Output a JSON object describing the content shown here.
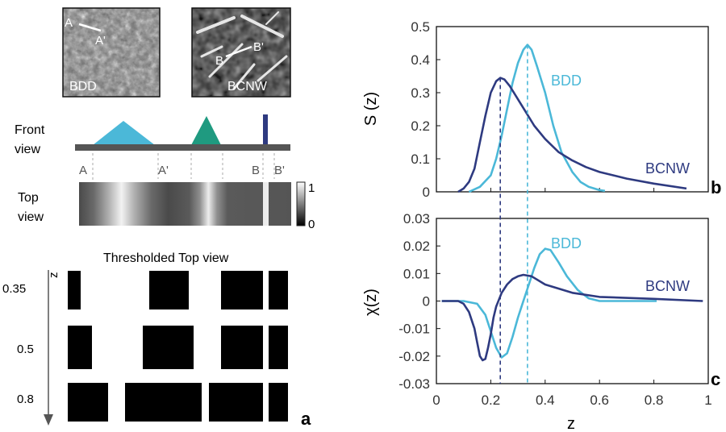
{
  "panel_labels": {
    "a": "a",
    "b": "b",
    "c": "c"
  },
  "panel_a": {
    "micrograph_labels": {
      "bdd": {
        "name": "BDD",
        "point_start": "A",
        "point_end": "A'"
      },
      "bcnw": {
        "name": "BCNW",
        "point_start": "B",
        "point_end": "B'"
      }
    },
    "row_labels": {
      "front_line1": "Front",
      "front_line2": "view",
      "top_line1": "Top",
      "top_line2": "view"
    },
    "front_view_colors": {
      "bdd": "#4bb8d8",
      "middle": "#1f9a80",
      "bcnw": "#2e3a80",
      "base": "#555555"
    },
    "section_labels": [
      "A",
      "A'",
      "B",
      "B'"
    ],
    "colorbar": {
      "max_label": "1",
      "min_label": "0"
    },
    "thresholded": {
      "title": "Thresholded Top view",
      "axis_label": "z",
      "levels": [
        "0.35",
        "0.5",
        "0.8"
      ]
    }
  },
  "colors": {
    "bdd": "#4bb8d8",
    "bcnw": "#2e3a80"
  },
  "chart_data": [
    {
      "type": "line",
      "panel": "b",
      "ylabel": "S (z)",
      "xlabel": "",
      "xlim": [
        0,
        1
      ],
      "ylim": [
        0,
        0.5
      ],
      "yticks": [
        "0",
        "0.1",
        "0.2",
        "0.3",
        "0.4",
        "0.5"
      ],
      "series": [
        {
          "name": "BDD",
          "x": [
            0.12,
            0.16,
            0.2,
            0.22,
            0.24,
            0.26,
            0.28,
            0.3,
            0.32,
            0.335,
            0.35,
            0.37,
            0.4,
            0.43,
            0.46,
            0.5,
            0.53,
            0.56,
            0.6,
            0.62
          ],
          "y": [
            0,
            0.015,
            0.05,
            0.1,
            0.17,
            0.25,
            0.33,
            0.39,
            0.43,
            0.445,
            0.43,
            0.38,
            0.3,
            0.2,
            0.12,
            0.06,
            0.03,
            0.015,
            0.005,
            0.003
          ]
        },
        {
          "name": "BCNW",
          "x": [
            0.08,
            0.1,
            0.12,
            0.14,
            0.16,
            0.18,
            0.2,
            0.22,
            0.235,
            0.25,
            0.27,
            0.3,
            0.33,
            0.36,
            0.4,
            0.45,
            0.5,
            0.55,
            0.6,
            0.7,
            0.8,
            0.92
          ],
          "y": [
            0,
            0.01,
            0.03,
            0.07,
            0.15,
            0.23,
            0.3,
            0.335,
            0.345,
            0.34,
            0.32,
            0.28,
            0.24,
            0.2,
            0.16,
            0.12,
            0.095,
            0.075,
            0.06,
            0.04,
            0.025,
            0.01
          ]
        }
      ],
      "markers": [
        {
          "series": "BCNW",
          "x": 0.235
        },
        {
          "series": "BDD",
          "x": 0.335
        }
      ]
    },
    {
      "type": "line",
      "panel": "c",
      "ylabel": "χ(z)",
      "xlabel": "z",
      "xlim": [
        0,
        1
      ],
      "ylim": [
        -0.03,
        0.03
      ],
      "xticks": [
        "0",
        "0.2",
        "0.4",
        "0.6",
        "0.8",
        "1"
      ],
      "yticks": [
        "-0.03",
        "-0.02",
        "-0.01",
        "0",
        "0.01",
        "0.02",
        "0.03"
      ],
      "series": [
        {
          "name": "BDD",
          "x": [
            0.02,
            0.1,
            0.15,
            0.18,
            0.2,
            0.22,
            0.24,
            0.26,
            0.28,
            0.3,
            0.32,
            0.34,
            0.36,
            0.38,
            0.4,
            0.42,
            0.45,
            0.48,
            0.52,
            0.56,
            0.6,
            0.7,
            0.81
          ],
          "y": [
            0,
            0,
            -0.001,
            -0.005,
            -0.011,
            -0.017,
            -0.0205,
            -0.019,
            -0.013,
            -0.006,
            0.0,
            0.006,
            0.012,
            0.017,
            0.019,
            0.0185,
            0.014,
            0.009,
            0.004,
            0.001,
            0.0,
            0.0,
            0.0
          ]
        },
        {
          "name": "BCNW",
          "x": [
            0.02,
            0.08,
            0.1,
            0.12,
            0.14,
            0.15,
            0.16,
            0.17,
            0.18,
            0.19,
            0.2,
            0.21,
            0.22,
            0.24,
            0.26,
            0.28,
            0.3,
            0.32,
            0.35,
            0.4,
            0.5,
            0.6,
            0.8,
            0.98
          ],
          "y": [
            0,
            0,
            -0.001,
            -0.004,
            -0.01,
            -0.015,
            -0.02,
            -0.0215,
            -0.021,
            -0.017,
            -0.012,
            -0.006,
            -0.002,
            0.003,
            0.006,
            0.008,
            0.009,
            0.0095,
            0.009,
            0.006,
            0.003,
            0.0015,
            0.0008,
            0.0
          ]
        }
      ]
    }
  ]
}
